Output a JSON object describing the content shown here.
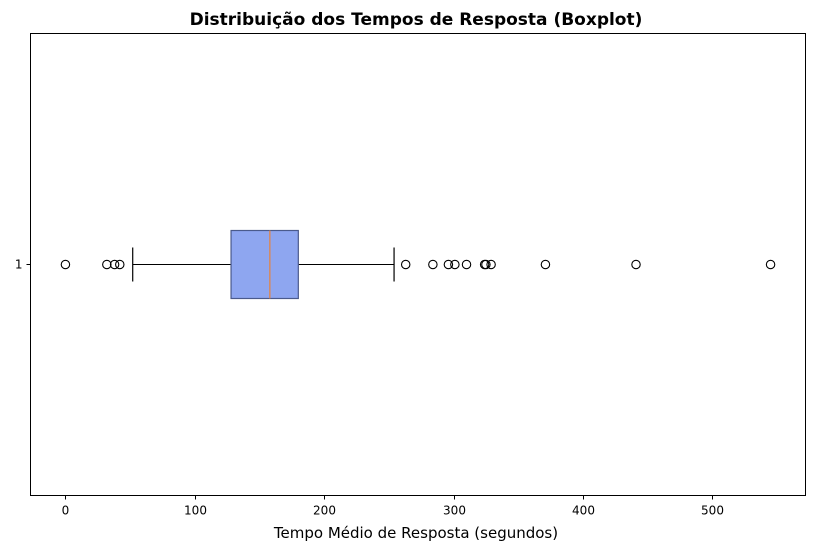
{
  "chart_data": {
    "type": "boxplot",
    "orientation": "horizontal",
    "title": "Distribuição dos Tempos de Resposta (Boxplot)",
    "xlabel": "Tempo Médio de Resposta (segundos)",
    "ylabel": "",
    "xlim": [
      -27,
      572
    ],
    "x_ticks": [
      0,
      100,
      200,
      300,
      400,
      500
    ],
    "categories": [
      "1"
    ],
    "series": [
      {
        "whisker_low": 52,
        "q1": 128,
        "median": 158,
        "q3": 180,
        "whisker_high": 254,
        "outliers": [
          0,
          32,
          38,
          42,
          263,
          284,
          296,
          301,
          310,
          324,
          325,
          329,
          371,
          441,
          545
        ]
      }
    ],
    "grid": false,
    "legend": "none",
    "colors": {
      "box_fill": "#8ea6f0",
      "box_edge": "#4a5a8c",
      "median": "#e8823a",
      "whisker": "#000000",
      "outlier_edge": "#000000"
    }
  }
}
